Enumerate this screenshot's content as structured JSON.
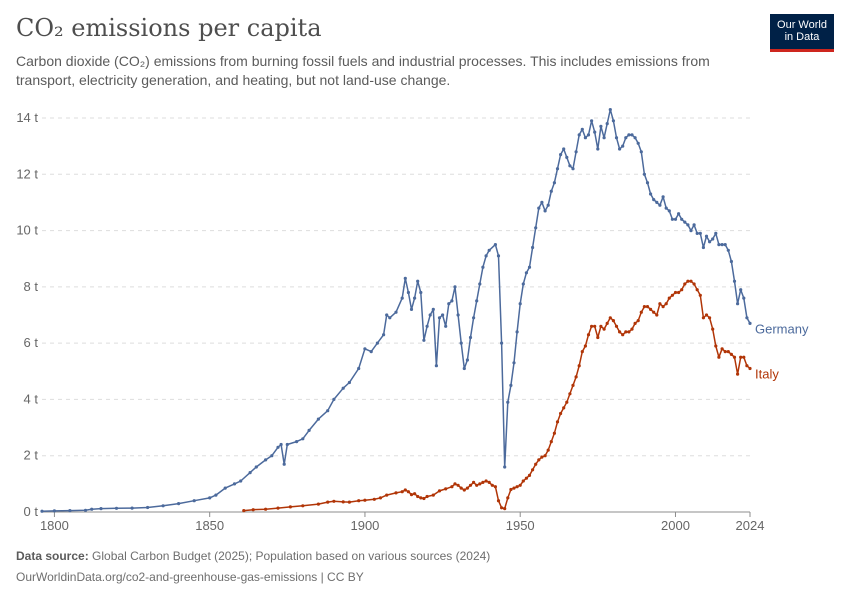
{
  "header": {
    "title": "CO₂ emissions per capita",
    "subtitle": "Carbon dioxide (CO₂) emissions from burning fossil fuels and industrial processes. This includes emissions from transport, electricity generation, and heating, but not land-use change.",
    "logo_line1": "Our World",
    "logo_line2": "in Data"
  },
  "footer": {
    "source_label": "Data source:",
    "source_text": "Global Carbon Budget (2025); Population based on various sources (2024)",
    "url_line": "OurWorldinData.org/co2-and-greenhouse-gas-emissions | CC BY"
  },
  "chart_data": {
    "type": "line",
    "xlim": [
      1796,
      2024
    ],
    "ylim": [
      0,
      14
    ],
    "x_ticks": [
      1800,
      1850,
      1900,
      1950,
      2000,
      2024
    ],
    "y_ticks": [
      0,
      2,
      4,
      6,
      8,
      10,
      12,
      14
    ],
    "y_tick_labels": [
      "0 t",
      "2 t",
      "4 t",
      "6 t",
      "8 t",
      "10 t",
      "12 t",
      "14 t"
    ],
    "grid": "horizontal-dashed",
    "legend": "inline-line-end",
    "series": [
      {
        "name": "Germany",
        "color": "#4c6a9c",
        "points": [
          [
            1796,
            0.03
          ],
          [
            1800,
            0.04
          ],
          [
            1805,
            0.05
          ],
          [
            1810,
            0.06
          ],
          [
            1812,
            0.1
          ],
          [
            1815,
            0.12
          ],
          [
            1820,
            0.13
          ],
          [
            1825,
            0.14
          ],
          [
            1830,
            0.16
          ],
          [
            1835,
            0.22
          ],
          [
            1840,
            0.3
          ],
          [
            1845,
            0.4
          ],
          [
            1850,
            0.5
          ],
          [
            1852,
            0.6
          ],
          [
            1855,
            0.85
          ],
          [
            1858,
            1.0
          ],
          [
            1860,
            1.1
          ],
          [
            1863,
            1.4
          ],
          [
            1865,
            1.6
          ],
          [
            1868,
            1.85
          ],
          [
            1870,
            2.0
          ],
          [
            1872,
            2.3
          ],
          [
            1873,
            2.4
          ],
          [
            1874,
            1.7
          ],
          [
            1875,
            2.4
          ],
          [
            1878,
            2.5
          ],
          [
            1880,
            2.6
          ],
          [
            1882,
            2.9
          ],
          [
            1885,
            3.3
          ],
          [
            1888,
            3.6
          ],
          [
            1890,
            4.0
          ],
          [
            1893,
            4.4
          ],
          [
            1895,
            4.6
          ],
          [
            1898,
            5.1
          ],
          [
            1900,
            5.8
          ],
          [
            1902,
            5.7
          ],
          [
            1904,
            6.0
          ],
          [
            1906,
            6.3
          ],
          [
            1907,
            7.0
          ],
          [
            1908,
            6.9
          ],
          [
            1910,
            7.1
          ],
          [
            1912,
            7.6
          ],
          [
            1913,
            8.3
          ],
          [
            1914,
            7.8
          ],
          [
            1915,
            7.2
          ],
          [
            1916,
            7.6
          ],
          [
            1917,
            8.2
          ],
          [
            1918,
            7.8
          ],
          [
            1919,
            6.1
          ],
          [
            1920,
            6.6
          ],
          [
            1921,
            7.0
          ],
          [
            1922,
            7.2
          ],
          [
            1923,
            5.2
          ],
          [
            1924,
            6.9
          ],
          [
            1925,
            7.0
          ],
          [
            1926,
            6.6
          ],
          [
            1927,
            7.4
          ],
          [
            1928,
            7.5
          ],
          [
            1929,
            8.0
          ],
          [
            1930,
            7.0
          ],
          [
            1931,
            6.0
          ],
          [
            1932,
            5.1
          ],
          [
            1933,
            5.4
          ],
          [
            1934,
            6.2
          ],
          [
            1935,
            6.9
          ],
          [
            1936,
            7.5
          ],
          [
            1937,
            8.1
          ],
          [
            1938,
            8.7
          ],
          [
            1939,
            9.1
          ],
          [
            1940,
            9.3
          ],
          [
            1942,
            9.5
          ],
          [
            1943,
            9.1
          ],
          [
            1944,
            6.0
          ],
          [
            1945,
            1.6
          ],
          [
            1946,
            3.9
          ],
          [
            1947,
            4.5
          ],
          [
            1948,
            5.3
          ],
          [
            1949,
            6.4
          ],
          [
            1950,
            7.4
          ],
          [
            1951,
            8.1
          ],
          [
            1952,
            8.5
          ],
          [
            1953,
            8.7
          ],
          [
            1954,
            9.4
          ],
          [
            1955,
            10.1
          ],
          [
            1956,
            10.8
          ],
          [
            1957,
            11.0
          ],
          [
            1958,
            10.7
          ],
          [
            1959,
            10.9
          ],
          [
            1960,
            11.4
          ],
          [
            1961,
            11.7
          ],
          [
            1962,
            12.2
          ],
          [
            1963,
            12.7
          ],
          [
            1964,
            12.9
          ],
          [
            1965,
            12.6
          ],
          [
            1966,
            12.3
          ],
          [
            1967,
            12.2
          ],
          [
            1968,
            12.8
          ],
          [
            1969,
            13.4
          ],
          [
            1970,
            13.6
          ],
          [
            1971,
            13.3
          ],
          [
            1972,
            13.4
          ],
          [
            1973,
            13.9
          ],
          [
            1974,
            13.5
          ],
          [
            1975,
            12.9
          ],
          [
            1976,
            13.7
          ],
          [
            1977,
            13.3
          ],
          [
            1978,
            13.8
          ],
          [
            1979,
            14.3
          ],
          [
            1980,
            13.9
          ],
          [
            1981,
            13.3
          ],
          [
            1982,
            12.9
          ],
          [
            1983,
            13.0
          ],
          [
            1984,
            13.3
          ],
          [
            1985,
            13.4
          ],
          [
            1986,
            13.4
          ],
          [
            1987,
            13.3
          ],
          [
            1988,
            13.1
          ],
          [
            1989,
            12.8
          ],
          [
            1990,
            12.0
          ],
          [
            1991,
            11.7
          ],
          [
            1992,
            11.3
          ],
          [
            1993,
            11.1
          ],
          [
            1994,
            11.0
          ],
          [
            1995,
            10.9
          ],
          [
            1996,
            11.2
          ],
          [
            1997,
            10.8
          ],
          [
            1998,
            10.7
          ],
          [
            1999,
            10.4
          ],
          [
            2000,
            10.4
          ],
          [
            2001,
            10.6
          ],
          [
            2002,
            10.4
          ],
          [
            2003,
            10.3
          ],
          [
            2004,
            10.2
          ],
          [
            2005,
            10.0
          ],
          [
            2006,
            10.2
          ],
          [
            2007,
            9.9
          ],
          [
            2008,
            9.9
          ],
          [
            2009,
            9.4
          ],
          [
            2010,
            9.8
          ],
          [
            2011,
            9.6
          ],
          [
            2012,
            9.7
          ],
          [
            2013,
            9.9
          ],
          [
            2014,
            9.5
          ],
          [
            2015,
            9.5
          ],
          [
            2016,
            9.5
          ],
          [
            2017,
            9.3
          ],
          [
            2018,
            8.9
          ],
          [
            2019,
            8.2
          ],
          [
            2020,
            7.4
          ],
          [
            2021,
            7.9
          ],
          [
            2022,
            7.6
          ],
          [
            2023,
            6.9
          ],
          [
            2024,
            6.7
          ]
        ]
      },
      {
        "name": "Italy",
        "color": "#b13507",
        "points": [
          [
            1861,
            0.05
          ],
          [
            1864,
            0.08
          ],
          [
            1868,
            0.1
          ],
          [
            1872,
            0.14
          ],
          [
            1876,
            0.18
          ],
          [
            1880,
            0.22
          ],
          [
            1885,
            0.28
          ],
          [
            1888,
            0.35
          ],
          [
            1890,
            0.38
          ],
          [
            1893,
            0.36
          ],
          [
            1895,
            0.35
          ],
          [
            1898,
            0.4
          ],
          [
            1900,
            0.42
          ],
          [
            1903,
            0.45
          ],
          [
            1905,
            0.5
          ],
          [
            1907,
            0.6
          ],
          [
            1910,
            0.68
          ],
          [
            1912,
            0.72
          ],
          [
            1913,
            0.78
          ],
          [
            1914,
            0.72
          ],
          [
            1915,
            0.62
          ],
          [
            1916,
            0.65
          ],
          [
            1917,
            0.55
          ],
          [
            1918,
            0.5
          ],
          [
            1919,
            0.48
          ],
          [
            1920,
            0.55
          ],
          [
            1922,
            0.6
          ],
          [
            1924,
            0.75
          ],
          [
            1926,
            0.82
          ],
          [
            1928,
            0.9
          ],
          [
            1929,
            1.0
          ],
          [
            1930,
            0.95
          ],
          [
            1931,
            0.85
          ],
          [
            1932,
            0.78
          ],
          [
            1933,
            0.85
          ],
          [
            1934,
            0.95
          ],
          [
            1935,
            1.05
          ],
          [
            1936,
            0.95
          ],
          [
            1937,
            1.0
          ],
          [
            1938,
            1.05
          ],
          [
            1939,
            1.1
          ],
          [
            1940,
            1.05
          ],
          [
            1941,
            0.95
          ],
          [
            1942,
            0.9
          ],
          [
            1943,
            0.4
          ],
          [
            1944,
            0.15
          ],
          [
            1945,
            0.12
          ],
          [
            1946,
            0.5
          ],
          [
            1947,
            0.8
          ],
          [
            1948,
            0.85
          ],
          [
            1949,
            0.9
          ],
          [
            1950,
            0.95
          ],
          [
            1951,
            1.1
          ],
          [
            1952,
            1.2
          ],
          [
            1953,
            1.3
          ],
          [
            1954,
            1.5
          ],
          [
            1955,
            1.7
          ],
          [
            1956,
            1.85
          ],
          [
            1957,
            1.95
          ],
          [
            1958,
            2.0
          ],
          [
            1959,
            2.2
          ],
          [
            1960,
            2.5
          ],
          [
            1961,
            2.8
          ],
          [
            1962,
            3.2
          ],
          [
            1963,
            3.5
          ],
          [
            1964,
            3.7
          ],
          [
            1965,
            3.9
          ],
          [
            1966,
            4.2
          ],
          [
            1967,
            4.5
          ],
          [
            1968,
            4.8
          ],
          [
            1969,
            5.2
          ],
          [
            1970,
            5.7
          ],
          [
            1971,
            5.9
          ],
          [
            1972,
            6.3
          ],
          [
            1973,
            6.6
          ],
          [
            1974,
            6.6
          ],
          [
            1975,
            6.2
          ],
          [
            1976,
            6.6
          ],
          [
            1977,
            6.5
          ],
          [
            1978,
            6.7
          ],
          [
            1979,
            6.9
          ],
          [
            1980,
            6.8
          ],
          [
            1981,
            6.6
          ],
          [
            1982,
            6.4
          ],
          [
            1983,
            6.3
          ],
          [
            1984,
            6.4
          ],
          [
            1985,
            6.4
          ],
          [
            1986,
            6.5
          ],
          [
            1987,
            6.7
          ],
          [
            1988,
            6.8
          ],
          [
            1989,
            7.1
          ],
          [
            1990,
            7.3
          ],
          [
            1991,
            7.3
          ],
          [
            1992,
            7.2
          ],
          [
            1993,
            7.1
          ],
          [
            1994,
            7.0
          ],
          [
            1995,
            7.4
          ],
          [
            1996,
            7.3
          ],
          [
            1997,
            7.4
          ],
          [
            1998,
            7.6
          ],
          [
            1999,
            7.7
          ],
          [
            2000,
            7.8
          ],
          [
            2001,
            7.8
          ],
          [
            2002,
            7.9
          ],
          [
            2003,
            8.1
          ],
          [
            2004,
            8.2
          ],
          [
            2005,
            8.2
          ],
          [
            2006,
            8.1
          ],
          [
            2007,
            7.9
          ],
          [
            2008,
            7.7
          ],
          [
            2009,
            6.9
          ],
          [
            2010,
            7.0
          ],
          [
            2011,
            6.9
          ],
          [
            2012,
            6.5
          ],
          [
            2013,
            5.9
          ],
          [
            2014,
            5.5
          ],
          [
            2015,
            5.8
          ],
          [
            2016,
            5.7
          ],
          [
            2017,
            5.7
          ],
          [
            2018,
            5.6
          ],
          [
            2019,
            5.5
          ],
          [
            2020,
            4.9
          ],
          [
            2021,
            5.5
          ],
          [
            2022,
            5.5
          ],
          [
            2023,
            5.2
          ],
          [
            2024,
            5.1
          ]
        ]
      }
    ]
  }
}
